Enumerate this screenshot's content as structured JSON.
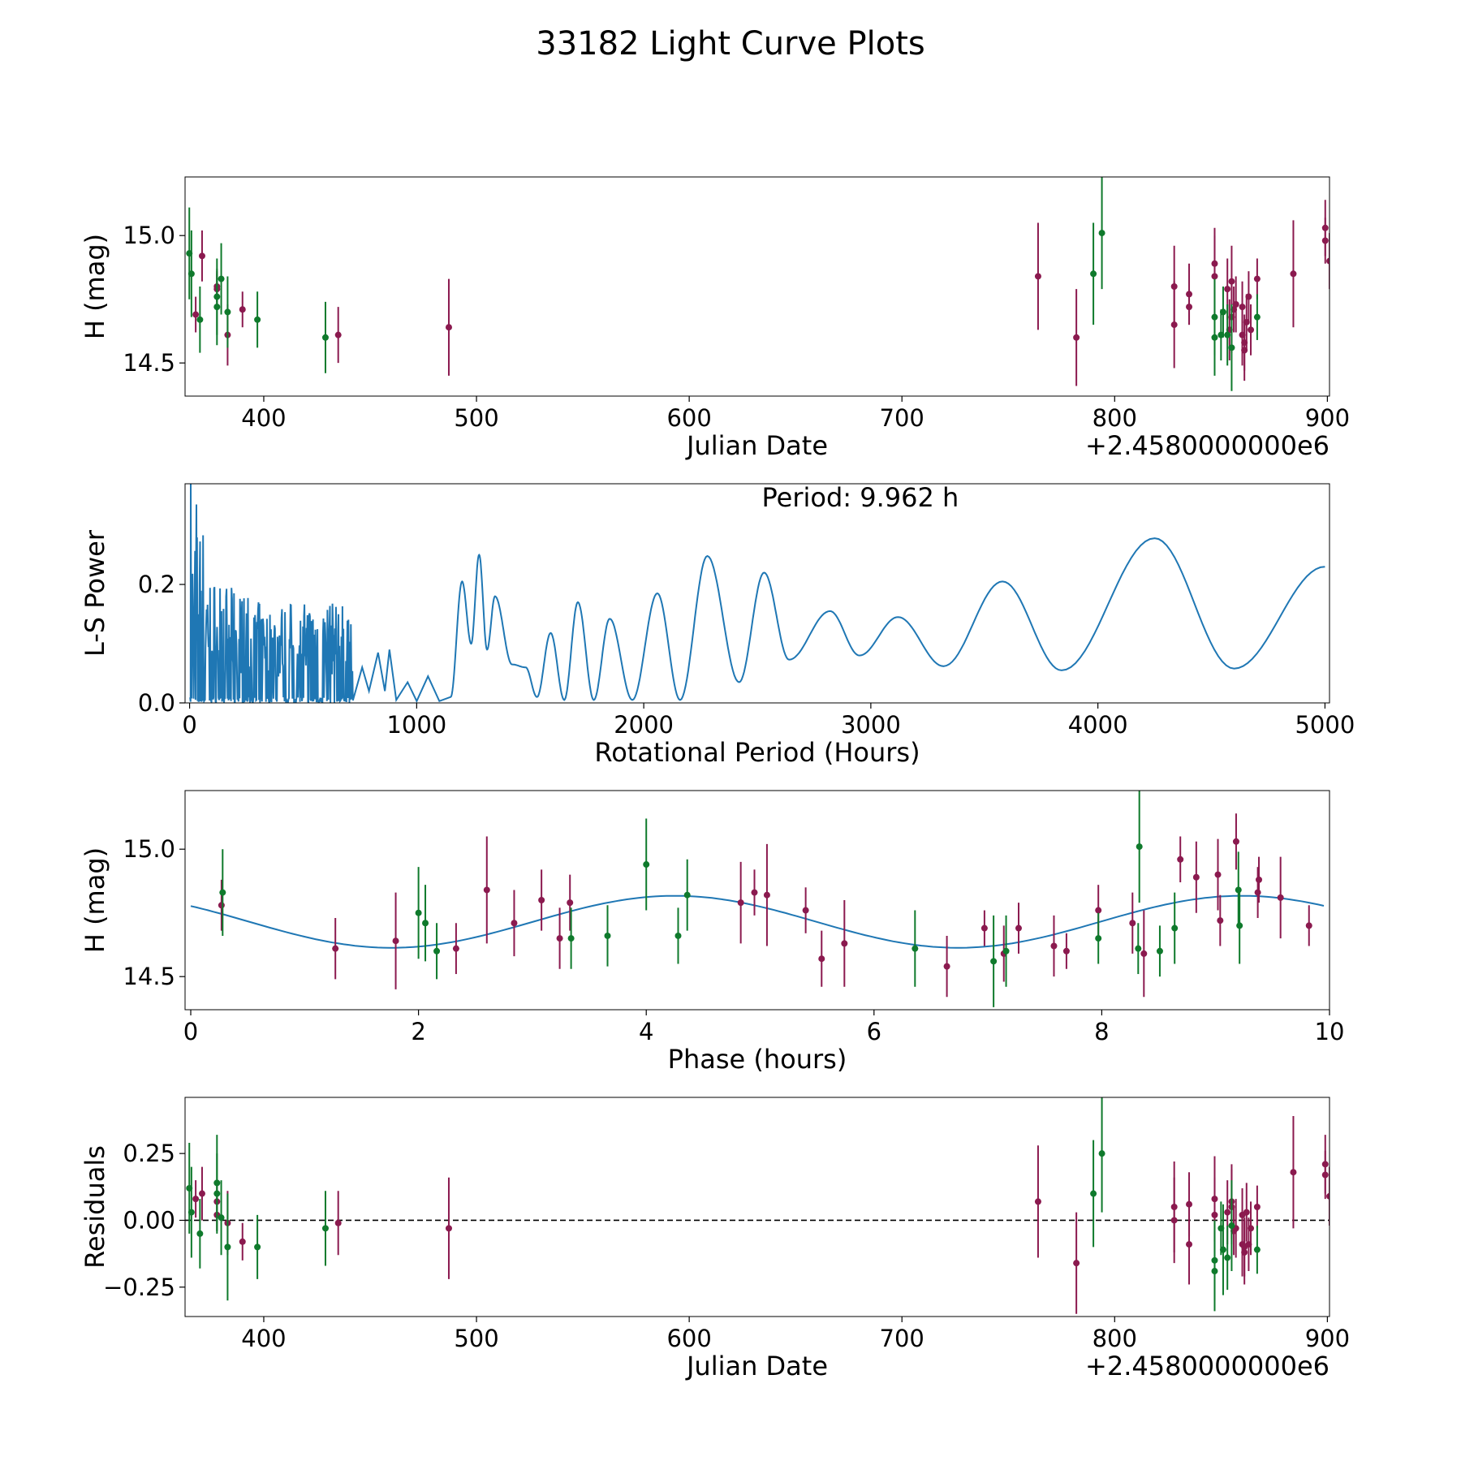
{
  "title": "33182 Light Curve Plots",
  "colors": {
    "band_a": "#8b1a4f",
    "band_b": "#0f7a2c",
    "model": "#1f77b4",
    "zero_line": "#000000"
  },
  "chart_data": [
    {
      "id": "lightcurve",
      "type": "scatter",
      "xlabel": "Julian Date",
      "ylabel": "H (mag)",
      "x_offset_label": "+2.4580000000e6",
      "xlim": [
        363,
        901
      ],
      "ylim": [
        14.37,
        15.23
      ],
      "y_inverted": false,
      "xticks": [
        400,
        500,
        600,
        700,
        800,
        900
      ],
      "xtick_labels": [
        "400",
        "500",
        "600",
        "700",
        "800",
        "900"
      ],
      "yticks": [
        14.5,
        15.0
      ],
      "ytick_labels": [
        "14.5",
        "15.0"
      ],
      "series": [
        {
          "name": "band_a",
          "color": "#8b1a4f",
          "points": [
            [
              368,
              14.69,
              0.07
            ],
            [
              371,
              14.92,
              0.1
            ],
            [
              378,
              14.8,
              0.06
            ],
            [
              378,
              14.79,
              0.06
            ],
            [
              383,
              14.61,
              0.12
            ],
            [
              390,
              14.71,
              0.07
            ],
            [
              435,
              14.61,
              0.11
            ],
            [
              487,
              14.64,
              0.19
            ],
            [
              764,
              14.84,
              0.21
            ],
            [
              782,
              14.6,
              0.19
            ],
            [
              828,
              14.65,
              0.17
            ],
            [
              828,
              14.8,
              0.16
            ],
            [
              835,
              14.77,
              0.12
            ],
            [
              835,
              14.72,
              0.07
            ],
            [
              847,
              14.84,
              0.16
            ],
            [
              847,
              14.89,
              0.14
            ],
            [
              853,
              14.79,
              0.12
            ],
            [
              854,
              14.63,
              0.12
            ],
            [
              855,
              14.82,
              0.14
            ],
            [
              855,
              14.68,
              0.14
            ],
            [
              856,
              14.71,
              0.09
            ],
            [
              857,
              14.73,
              0.11
            ],
            [
              860,
              14.72,
              0.1
            ],
            [
              860,
              14.61,
              0.12
            ],
            [
              861,
              14.55,
              0.12
            ],
            [
              861,
              14.58,
              0.11
            ],
            [
              862,
              14.66,
              0.11
            ],
            [
              863,
              14.76,
              0.1
            ],
            [
              864,
              14.63,
              0.1
            ],
            [
              867,
              14.83,
              0.08
            ],
            [
              884,
              14.85,
              0.21
            ],
            [
              899,
              15.03,
              0.11
            ],
            [
              899,
              14.98,
              0.09
            ],
            [
              901,
              14.9,
              0.11
            ]
          ]
        },
        {
          "name": "band_b",
          "color": "#0f7a2c",
          "points": [
            [
              365,
              14.93,
              0.18
            ],
            [
              366,
              14.85,
              0.17
            ],
            [
              370,
              14.67,
              0.13
            ],
            [
              378,
              14.72,
              0.15
            ],
            [
              378,
              14.76,
              0.15
            ],
            [
              380,
              14.83,
              0.14
            ],
            [
              383,
              14.7,
              0.14
            ],
            [
              397,
              14.67,
              0.11
            ],
            [
              429,
              14.6,
              0.14
            ],
            [
              790,
              14.85,
              0.2
            ],
            [
              794,
              15.01,
              0.22
            ],
            [
              847,
              14.68,
              0.15
            ],
            [
              847,
              14.6,
              0.15
            ],
            [
              850,
              14.61,
              0.1
            ],
            [
              851,
              14.7,
              0.1
            ],
            [
              853,
              14.61,
              0.12
            ],
            [
              855,
              14.56,
              0.17
            ],
            [
              867,
              14.68,
              0.09
            ]
          ]
        }
      ]
    },
    {
      "id": "periodogram",
      "type": "line",
      "xlabel": "Rotational Period (Hours)",
      "ylabel": "L-S Power",
      "annotation": "Period: 9.962 h",
      "xlim": [
        -20,
        5020
      ],
      "ylim": [
        0,
        0.37
      ],
      "xticks": [
        0,
        1000,
        2000,
        3000,
        4000,
        5000
      ],
      "xtick_labels": [
        "0",
        "1000",
        "2000",
        "3000",
        "4000",
        "5000"
      ],
      "yticks": [
        0.0,
        0.2
      ],
      "ytick_labels": [
        "0.0",
        "0.2"
      ],
      "color": "#1f77b4",
      "noise_max_period": 720,
      "peaks": [
        [
          1200,
          0.205
        ],
        [
          1275,
          0.25
        ],
        [
          1345,
          0.18
        ],
        [
          1480,
          0.06
        ],
        [
          1590,
          0.118
        ],
        [
          1710,
          0.17
        ],
        [
          1850,
          0.142
        ],
        [
          2060,
          0.185
        ],
        [
          2280,
          0.248
        ],
        [
          2530,
          0.22
        ],
        [
          2820,
          0.155
        ],
        [
          3120,
          0.145
        ],
        [
          3580,
          0.205
        ],
        [
          4250,
          0.278
        ],
        [
          5000,
          0.23
        ]
      ],
      "troughs": [
        [
          1150,
          0.01
        ],
        [
          1240,
          0.1
        ],
        [
          1310,
          0.09
        ],
        [
          1420,
          0.065
        ],
        [
          1530,
          0.01
        ],
        [
          1650,
          0.005
        ],
        [
          1780,
          0.005
        ],
        [
          1950,
          0.005
        ],
        [
          2160,
          0.005
        ],
        [
          2420,
          0.035
        ],
        [
          2640,
          0.073
        ],
        [
          2950,
          0.08
        ],
        [
          3320,
          0.062
        ],
        [
          3840,
          0.055
        ],
        [
          4600,
          0.058
        ]
      ]
    },
    {
      "id": "phase",
      "type": "scatter",
      "xlabel": "Phase (hours)",
      "ylabel": "H (mag)",
      "xlim": [
        -0.05,
        10.0
      ],
      "ylim": [
        14.37,
        15.23
      ],
      "xticks": [
        0,
        2,
        4,
        6,
        8,
        10
      ],
      "xtick_labels": [
        "0",
        "2",
        "4",
        "6",
        "8",
        "10"
      ],
      "yticks": [
        14.5,
        15.0
      ],
      "ytick_labels": [
        "14.5",
        "15.0"
      ],
      "model": {
        "period_hours": 4.98,
        "mean": 14.715,
        "amplitude": 0.102,
        "peak_phase": 4.25
      },
      "series": [
        {
          "name": "band_a",
          "color": "#8b1a4f",
          "points": [
            [
              0.27,
              14.78,
              0.1
            ],
            [
              1.27,
              14.61,
              0.12
            ],
            [
              1.8,
              14.64,
              0.19
            ],
            [
              2.33,
              14.61,
              0.1
            ],
            [
              2.6,
              14.84,
              0.21
            ],
            [
              2.84,
              14.71,
              0.13
            ],
            [
              3.08,
              14.8,
              0.12
            ],
            [
              3.24,
              14.65,
              0.12
            ],
            [
              3.33,
              14.79,
              0.11
            ],
            [
              4.83,
              14.79,
              0.16
            ],
            [
              4.95,
              14.83,
              0.09
            ],
            [
              5.06,
              14.82,
              0.2
            ],
            [
              5.4,
              14.76,
              0.09
            ],
            [
              5.54,
              14.57,
              0.11
            ],
            [
              5.74,
              14.63,
              0.17
            ],
            [
              6.64,
              14.54,
              0.12
            ],
            [
              6.97,
              14.69,
              0.07
            ],
            [
              7.14,
              14.59,
              0.11
            ],
            [
              7.27,
              14.69,
              0.1
            ],
            [
              7.58,
              14.62,
              0.12
            ],
            [
              7.69,
              14.6,
              0.07
            ],
            [
              7.97,
              14.76,
              0.1
            ],
            [
              8.27,
              14.71,
              0.12
            ],
            [
              8.37,
              14.59,
              0.17
            ],
            [
              8.69,
              14.96,
              0.09
            ],
            [
              8.83,
              14.89,
              0.14
            ],
            [
              9.02,
              14.9,
              0.14
            ],
            [
              9.04,
              14.72,
              0.1
            ],
            [
              9.18,
              15.03,
              0.11
            ],
            [
              9.37,
              14.83,
              0.1
            ],
            [
              9.38,
              14.88,
              0.09
            ],
            [
              9.57,
              14.81,
              0.16
            ],
            [
              9.82,
              14.7,
              0.08
            ]
          ]
        },
        {
          "name": "band_b",
          "color": "#0f7a2c",
          "points": [
            [
              0.28,
              14.83,
              0.17
            ],
            [
              2.0,
              14.75,
              0.18
            ],
            [
              2.06,
              14.71,
              0.15
            ],
            [
              2.16,
              14.6,
              0.11
            ],
            [
              3.34,
              14.65,
              0.12
            ],
            [
              3.66,
              14.66,
              0.12
            ],
            [
              4.0,
              14.94,
              0.18
            ],
            [
              4.28,
              14.66,
              0.11
            ],
            [
              4.36,
              14.82,
              0.14
            ],
            [
              6.36,
              14.61,
              0.15
            ],
            [
              7.05,
              14.56,
              0.18
            ],
            [
              7.16,
              14.6,
              0.14
            ],
            [
              7.97,
              14.65,
              0.1
            ],
            [
              8.32,
              14.61,
              0.1
            ],
            [
              8.33,
              15.01,
              0.22
            ],
            [
              8.51,
              14.6,
              0.1
            ],
            [
              8.64,
              14.69,
              0.14
            ],
            [
              9.2,
              14.84,
              0.15
            ],
            [
              9.21,
              14.7,
              0.15
            ]
          ]
        }
      ]
    },
    {
      "id": "residuals",
      "type": "scatter",
      "xlabel": "Julian Date",
      "ylabel": "Residuals",
      "x_offset_label": "+2.4580000000e6",
      "xlim": [
        363,
        901
      ],
      "ylim": [
        -0.36,
        0.46
      ],
      "xticks": [
        400,
        500,
        600,
        700,
        800,
        900
      ],
      "xtick_labels": [
        "400",
        "500",
        "600",
        "700",
        "800",
        "900"
      ],
      "yticks": [
        0.25,
        0.0,
        -0.25
      ],
      "ytick_labels": [
        "0.25",
        "0.00",
        "−0.25"
      ],
      "zero_line": true,
      "series": [
        {
          "name": "band_a",
          "color": "#8b1a4f",
          "points": [
            [
              368,
              0.08,
              0.07
            ],
            [
              371,
              0.1,
              0.1
            ],
            [
              378,
              0.02,
              0.06
            ],
            [
              378,
              0.07,
              0.06
            ],
            [
              383,
              -0.01,
              0.12
            ],
            [
              390,
              -0.08,
              0.07
            ],
            [
              435,
              -0.01,
              0.12
            ],
            [
              487,
              -0.03,
              0.19
            ],
            [
              764,
              0.07,
              0.21
            ],
            [
              782,
              -0.16,
              0.19
            ],
            [
              828,
              0.05,
              0.17
            ],
            [
              828,
              0.0,
              0.16
            ],
            [
              835,
              0.06,
              0.12
            ],
            [
              835,
              -0.09,
              0.15
            ],
            [
              847,
              0.08,
              0.16
            ],
            [
              847,
              0.02,
              0.14
            ],
            [
              853,
              0.03,
              0.12
            ],
            [
              855,
              0.07,
              0.14
            ],
            [
              855,
              0.05,
              0.14
            ],
            [
              856,
              -0.04,
              0.09
            ],
            [
              857,
              -0.03,
              0.11
            ],
            [
              860,
              0.02,
              0.1
            ],
            [
              860,
              -0.09,
              0.12
            ],
            [
              861,
              -0.12,
              0.12
            ],
            [
              861,
              -0.1,
              0.11
            ],
            [
              862,
              0.03,
              0.11
            ],
            [
              863,
              -0.09,
              0.1
            ],
            [
              864,
              -0.03,
              0.1
            ],
            [
              867,
              0.05,
              0.08
            ],
            [
              884,
              0.18,
              0.21
            ],
            [
              899,
              0.21,
              0.11
            ],
            [
              899,
              0.17,
              0.09
            ],
            [
              901,
              0.09,
              0.11
            ]
          ]
        },
        {
          "name": "band_b",
          "color": "#0f7a2c",
          "points": [
            [
              365,
              0.12,
              0.17
            ],
            [
              366,
              0.03,
              0.17
            ],
            [
              370,
              -0.05,
              0.13
            ],
            [
              378,
              0.1,
              0.15
            ],
            [
              378,
              0.14,
              0.18
            ],
            [
              380,
              0.01,
              0.14
            ],
            [
              383,
              -0.1,
              0.2
            ],
            [
              397,
              -0.1,
              0.12
            ],
            [
              429,
              -0.03,
              0.14
            ],
            [
              790,
              0.1,
              0.2
            ],
            [
              794,
              0.25,
              0.22
            ],
            [
              847,
              -0.15,
              0.15
            ],
            [
              847,
              -0.19,
              0.15
            ],
            [
              850,
              -0.03,
              0.1
            ],
            [
              851,
              -0.11,
              0.17
            ],
            [
              853,
              -0.14,
              0.12
            ],
            [
              855,
              -0.02,
              0.17
            ],
            [
              867,
              -0.11,
              0.09
            ]
          ]
        }
      ]
    }
  ]
}
